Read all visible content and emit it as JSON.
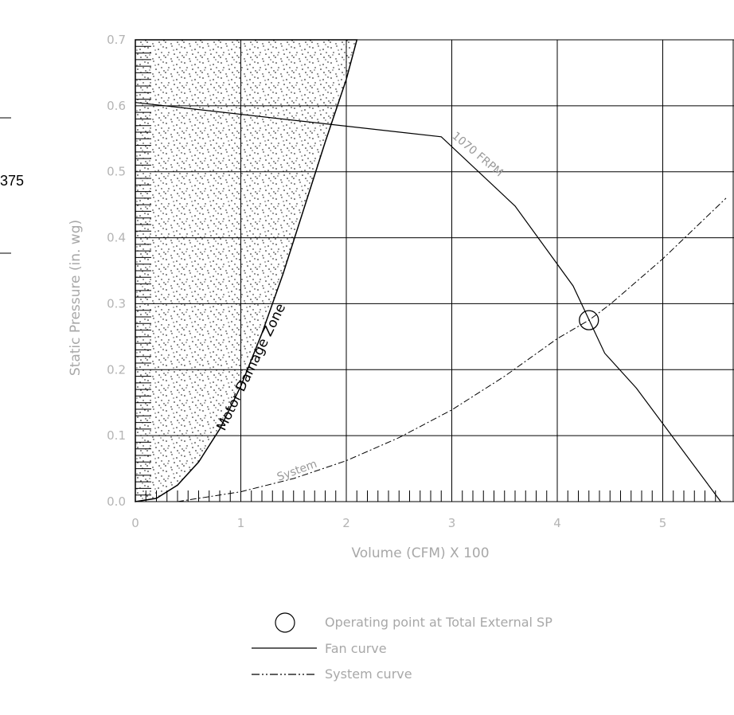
{
  "side_text": {
    "value": "375"
  },
  "chart_data": {
    "type": "line",
    "xlabel": "Volume (CFM) X 100",
    "ylabel": "Static Pressure (in. wg)",
    "xlim": [
      0,
      5.6
    ],
    "ylim": [
      0,
      0.7
    ],
    "xticks": [
      "0",
      "1",
      "2",
      "3",
      "4",
      "5"
    ],
    "yticks": [
      "0.0",
      "0.1",
      "0.2",
      "0.3",
      "0.4",
      "0.5",
      "0.6",
      "0.7"
    ],
    "grid": true,
    "series": [
      {
        "name": "1070 FRPM",
        "style": "solid",
        "x": [
          0,
          2.9,
          3.6,
          4.15,
          4.45,
          4.75,
          5.55
        ],
        "y": [
          0.605,
          0.553,
          0.448,
          0.327,
          0.225,
          0.172,
          0.0
        ]
      },
      {
        "name": "System",
        "style": "dash-dot",
        "x": [
          0.4,
          1.0,
          1.5,
          2.0,
          2.5,
          3.0,
          3.5,
          4.0,
          4.3,
          4.5,
          5.0,
          5.6
        ],
        "y": [
          0.0,
          0.015,
          0.035,
          0.062,
          0.097,
          0.139,
          0.19,
          0.247,
          0.275,
          0.299,
          0.368,
          0.46
        ]
      }
    ],
    "region": {
      "label": "Motor Damage Zone",
      "boundary_x": [
        0,
        0.2,
        0.4,
        0.6,
        0.8,
        1.0,
        1.2,
        1.4,
        1.6,
        1.8,
        2.0,
        2.1
      ],
      "boundary_y": [
        0.0,
        0.005,
        0.025,
        0.06,
        0.11,
        0.175,
        0.255,
        0.345,
        0.445,
        0.545,
        0.64,
        0.7
      ]
    },
    "operating_point": {
      "x": 4.3,
      "y": 0.275
    },
    "legend": {
      "position": "bottom",
      "items": [
        {
          "symbol": "circle",
          "label": "Operating point at Total External SP"
        },
        {
          "symbol": "solid",
          "label": "Fan curve"
        },
        {
          "symbol": "dash-dot",
          "label": "System curve"
        }
      ]
    }
  }
}
